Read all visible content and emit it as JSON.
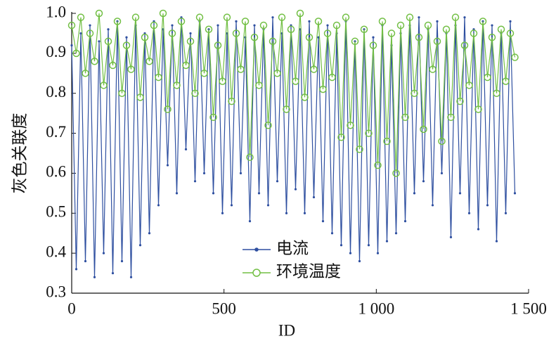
{
  "chart_data": {
    "type": "line",
    "xlabel": "ID",
    "ylabel": "灰色关联度",
    "x": [
      0,
      15,
      30,
      45,
      60,
      75,
      90,
      105,
      120,
      135,
      150,
      165,
      180,
      195,
      210,
      225,
      240,
      255,
      270,
      285,
      300,
      315,
      330,
      345,
      360,
      375,
      390,
      405,
      420,
      435,
      450,
      465,
      480,
      495,
      510,
      525,
      540,
      555,
      570,
      585,
      600,
      615,
      630,
      645,
      660,
      675,
      690,
      705,
      720,
      735,
      750,
      765,
      780,
      795,
      810,
      825,
      840,
      855,
      870,
      885,
      900,
      915,
      930,
      945,
      960,
      975,
      990,
      1005,
      1020,
      1035,
      1050,
      1065,
      1080,
      1095,
      1110,
      1125,
      1140,
      1155,
      1170,
      1185,
      1200,
      1215,
      1230,
      1245,
      1260,
      1275,
      1290,
      1305,
      1320,
      1335,
      1350,
      1365,
      1380,
      1395,
      1410,
      1425,
      1440,
      1455
    ],
    "series": [
      {
        "name": "电流",
        "color": "#2e4fa0",
        "marker": "dot",
        "values": [
          0.92,
          0.36,
          0.95,
          0.38,
          0.97,
          0.34,
          0.93,
          0.4,
          0.96,
          0.35,
          0.98,
          0.38,
          0.94,
          0.34,
          0.97,
          0.42,
          0.95,
          0.45,
          0.98,
          0.52,
          0.96,
          0.62,
          0.97,
          0.55,
          0.99,
          0.66,
          0.95,
          0.58,
          0.98,
          0.6,
          0.96,
          0.55,
          0.97,
          0.5,
          0.95,
          0.52,
          0.98,
          0.6,
          0.94,
          0.48,
          0.97,
          0.55,
          0.96,
          0.52,
          0.99,
          0.58,
          0.95,
          0.5,
          0.97,
          0.56,
          0.96,
          0.5,
          0.98,
          0.54,
          0.94,
          0.48,
          0.97,
          0.45,
          0.95,
          0.42,
          0.98,
          0.4,
          0.93,
          0.38,
          0.96,
          0.42,
          0.94,
          0.4,
          0.97,
          0.43,
          0.92,
          0.45,
          0.95,
          0.48,
          0.97,
          0.55,
          0.99,
          0.58,
          0.96,
          0.52,
          0.98,
          0.6,
          0.95,
          0.44,
          0.97,
          0.55,
          0.99,
          0.5,
          0.96,
          0.46,
          0.98,
          0.52,
          0.97,
          0.43,
          0.95,
          0.5,
          0.98,
          0.55
        ]
      },
      {
        "name": "环境温度",
        "color": "#72bf44",
        "marker": "circle",
        "values": [
          0.97,
          0.9,
          0.99,
          0.85,
          0.95,
          0.88,
          1.0,
          0.82,
          0.93,
          0.87,
          0.98,
          0.8,
          0.92,
          0.86,
          0.99,
          0.79,
          0.94,
          0.88,
          0.97,
          0.84,
          1.0,
          0.76,
          0.95,
          0.82,
          0.98,
          0.87,
          0.93,
          0.8,
          0.99,
          0.85,
          0.96,
          0.74,
          0.92,
          0.83,
          0.99,
          0.78,
          0.95,
          0.86,
          0.98,
          0.64,
          0.94,
          0.82,
          0.97,
          0.72,
          0.93,
          0.85,
          0.99,
          0.76,
          0.96,
          0.83,
          1.0,
          0.79,
          0.94,
          0.86,
          0.98,
          0.81,
          0.95,
          0.84,
          0.97,
          0.69,
          0.99,
          0.72,
          0.93,
          0.66,
          0.96,
          0.7,
          0.92,
          0.62,
          0.98,
          0.68,
          0.95,
          0.6,
          0.97,
          0.74,
          0.99,
          0.8,
          0.94,
          0.71,
          0.97,
          0.86,
          0.93,
          0.68,
          0.96,
          0.74,
          0.99,
          0.78,
          0.92,
          0.82,
          0.95,
          0.76,
          0.98,
          0.84,
          0.94,
          0.8,
          0.96,
          0.83,
          0.95,
          0.89
        ]
      }
    ],
    "xlim": [
      0,
      1500
    ],
    "xticks": [
      0,
      500,
      {
        "value": 1000,
        "label": "1 000"
      },
      {
        "value": 1500,
        "label": "1 500"
      }
    ],
    "ylim": [
      0.3,
      1
    ],
    "yticks": [
      0.3,
      0.4,
      0.5,
      0.6,
      0.7,
      0.8,
      0.9,
      {
        "value": 1,
        "label": "1.0"
      }
    ],
    "legend": "bottom-center"
  }
}
